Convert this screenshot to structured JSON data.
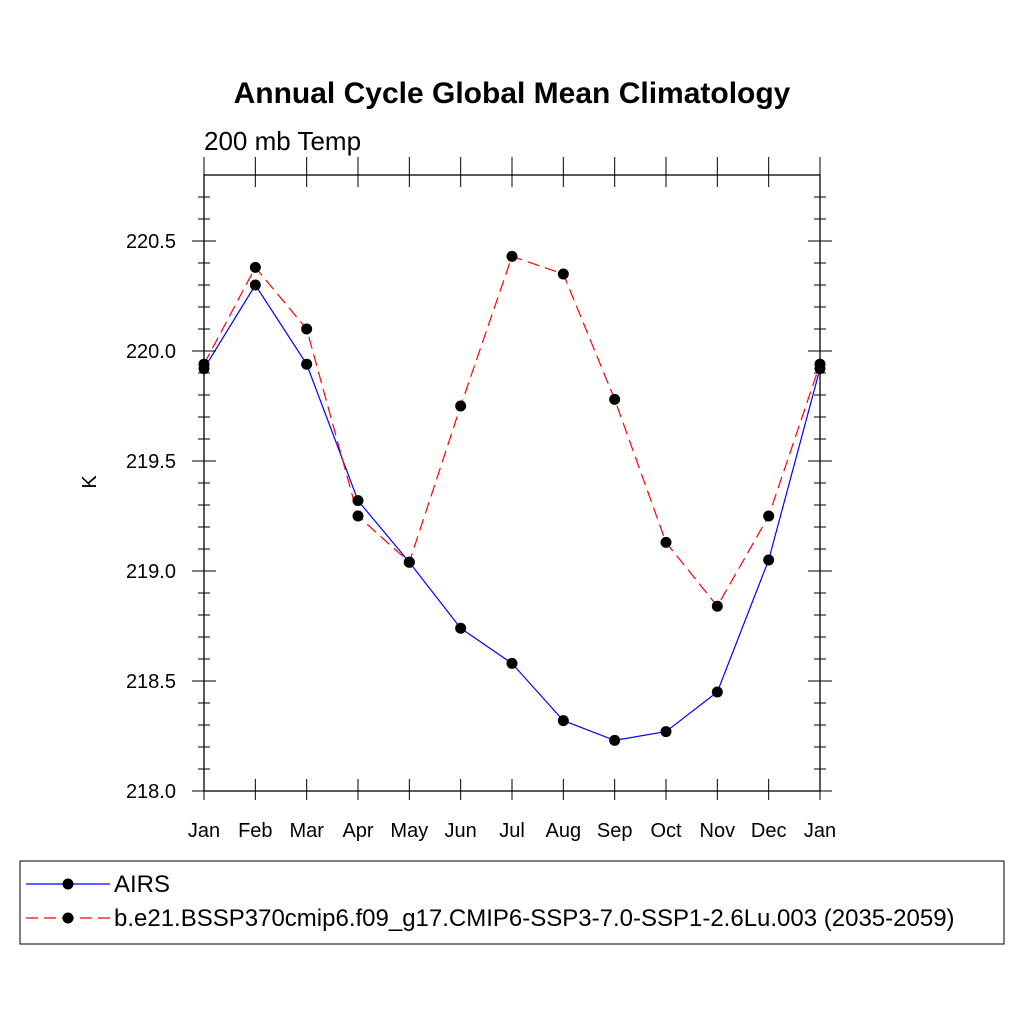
{
  "chart_data": {
    "type": "line",
    "title": "Annual Cycle Global Mean Climatology",
    "subtitle": "200 mb Temp",
    "xlabel": "",
    "ylabel": "K",
    "categories": [
      "Jan",
      "Feb",
      "Mar",
      "Apr",
      "May",
      "Jun",
      "Jul",
      "Aug",
      "Sep",
      "Oct",
      "Nov",
      "Dec",
      "Jan"
    ],
    "ylim": [
      218.0,
      220.8
    ],
    "yticks": [
      "218.0",
      "218.5",
      "219.0",
      "219.5",
      "220.0",
      "220.5"
    ],
    "series": [
      {
        "name": "AIRS",
        "color": "#0000ff",
        "dash": "solid",
        "values": [
          219.92,
          220.3,
          219.94,
          219.32,
          219.04,
          218.74,
          218.58,
          218.32,
          218.23,
          218.27,
          218.45,
          219.05,
          219.92
        ]
      },
      {
        "name": "b.e21.BSSP370cmip6.f09_g17.CMIP6-SSP3-7.0-SSP1-2.6Lu.003 (2035-2059)",
        "color": "#ff0000",
        "dash": "dashed",
        "values": [
          219.94,
          220.38,
          220.1,
          219.25,
          219.04,
          219.75,
          220.43,
          220.35,
          219.78,
          219.13,
          218.84,
          219.25,
          219.94
        ]
      }
    ],
    "legend_position": "bottom"
  }
}
